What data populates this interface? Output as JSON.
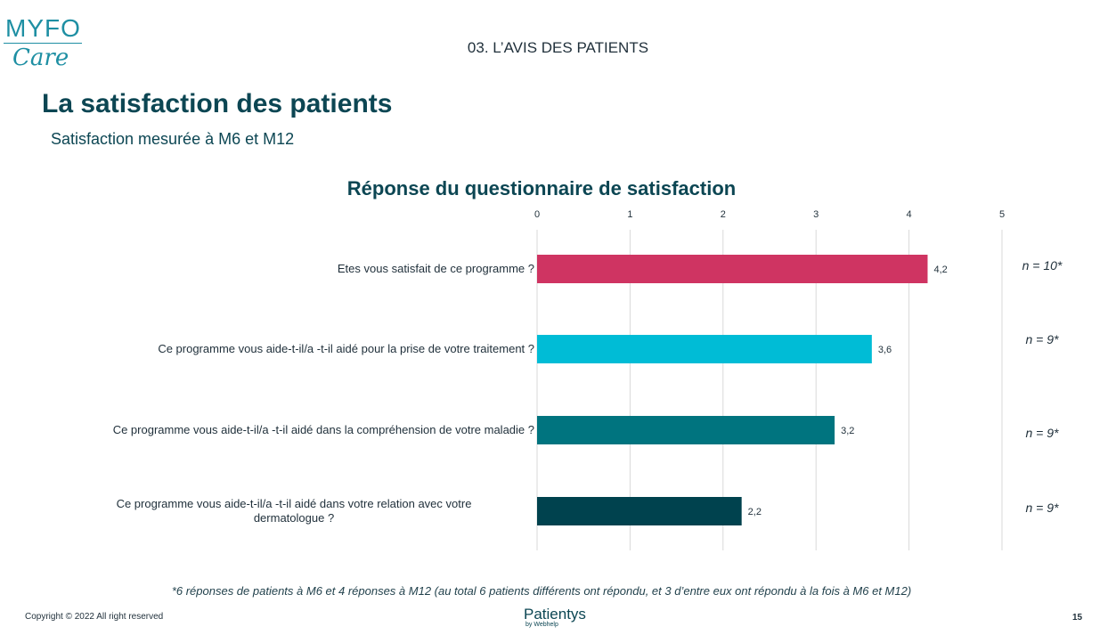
{
  "logo": {
    "top": "MYFO",
    "script": "Care"
  },
  "header": {
    "section": "03. L’AVIS DES PATIENTS",
    "title": "La satisfaction des patients",
    "subtitle": "Satisfaction mesurée à M6 et M12"
  },
  "chart_data": {
    "type": "bar",
    "orientation": "horizontal",
    "title": "Réponse du questionnaire de satisfaction",
    "xlim": [
      0,
      5
    ],
    "ticks": [
      "0",
      "1",
      "2",
      "3",
      "4",
      "5"
    ],
    "categories": [
      "Etes vous satisfait de ce programme ?",
      "Ce programme vous aide-t-il/a -t-il aidé pour la prise de votre traitement ?",
      "Ce programme vous aide-t-il/a -t-il aidé dans la compréhension de votre maladie ?",
      "Ce programme vous aide-t-il/a -t-il aidé dans votre relation avec votre dermatologue ?"
    ],
    "category_lines": [
      [
        "Etes vous satisfait de ce programme ?"
      ],
      [
        "Ce programme vous aide-t-il/a -t-il aidé pour la prise de votre traitement ?"
      ],
      [
        "Ce programme vous aide-t-il/a -t-il aidé dans la compréhension de votre maladie ?"
      ],
      [
        "Ce programme vous aide-t-il/a -t-il aidé dans votre relation avec votre",
        "dermatologue ?"
      ]
    ],
    "values": [
      4.2,
      3.6,
      3.2,
      2.2
    ],
    "value_labels": [
      "4,2",
      "3,6",
      "3,2",
      "2,2"
    ],
    "colors": [
      "#cf3462",
      "#00bcd6",
      "#00747f",
      "#00424e"
    ],
    "n_labels": [
      "n = 10*",
      "n = 9*",
      "n = 9*",
      "n = 9*"
    ],
    "grid": true
  },
  "footer": {
    "footnote": "*6 réponses de patients à M6 et 4 réponses à M12 (au total 6 patients différents ont répondu, et 3 d’entre eux ont répondu à la fois à M6 et M12)",
    "copyright": "Copyright © 2022 All right reserved",
    "brand": "Patientys",
    "brand_by": "by Webhelp",
    "page": "15"
  }
}
